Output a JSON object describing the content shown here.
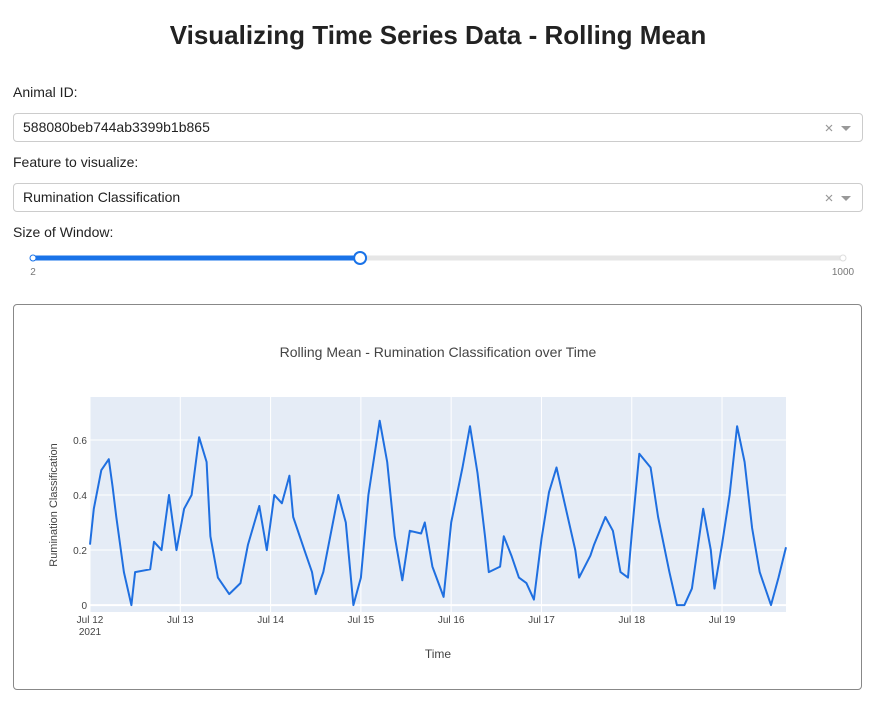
{
  "page": {
    "title": "Visualizing Time Series Data - Rolling Mean",
    "animal_label": "Animal ID:",
    "animal_value": "588080beb744ab3399b1b865",
    "feature_label": "Feature to visualize:",
    "feature_value": "Rumination Classification",
    "window_label": "Size of Window:",
    "slider": {
      "min": 2,
      "max": 1000,
      "value": 405
    }
  },
  "chart_data": {
    "type": "line",
    "title": "Rolling Mean - Rumination Classification over Time",
    "x_label": "Time",
    "y_label": "Rumination Classification",
    "color": "#1f6fe0",
    "grid": true,
    "x": [
      "2021-07-12 00:00",
      "2021-07-12 01:00",
      "2021-07-12 03:00",
      "2021-07-12 05:00",
      "2021-07-12 06:00",
      "2021-07-12 07:00",
      "2021-07-12 09:00",
      "2021-07-12 11:00",
      "2021-07-12 12:00",
      "2021-07-12 16:00",
      "2021-07-12 17:00",
      "2021-07-12 19:00",
      "2021-07-12 21:00",
      "2021-07-12 23:00",
      "2021-07-13 01:00",
      "2021-07-13 03:00",
      "2021-07-13 05:00",
      "2021-07-13 07:00",
      "2021-07-13 08:00",
      "2021-07-13 10:00",
      "2021-07-13 13:00",
      "2021-07-13 16:00",
      "2021-07-13 18:00",
      "2021-07-13 21:00",
      "2021-07-13 23:00",
      "2021-07-14 01:00",
      "2021-07-14 03:00",
      "2021-07-14 05:00",
      "2021-07-14 06:00",
      "2021-07-14 09:00",
      "2021-07-14 11:00",
      "2021-07-14 12:00",
      "2021-07-14 14:00",
      "2021-07-14 18:00",
      "2021-07-14 20:00",
      "2021-07-14 22:00",
      "2021-07-15 00:00",
      "2021-07-15 02:00",
      "2021-07-15 05:00",
      "2021-07-15 07:00",
      "2021-07-15 09:00",
      "2021-07-15 11:00",
      "2021-07-15 13:00",
      "2021-07-15 16:00",
      "2021-07-15 17:00",
      "2021-07-15 19:00",
      "2021-07-15 22:00",
      "2021-07-16 00:00",
      "2021-07-16 03:00",
      "2021-07-16 05:00",
      "2021-07-16 07:00",
      "2021-07-16 09:00",
      "2021-07-16 10:00",
      "2021-07-16 13:00",
      "2021-07-16 14:00",
      "2021-07-16 16:00",
      "2021-07-16 18:00",
      "2021-07-16 20:00",
      "2021-07-16 22:00",
      "2021-07-17 00:00",
      "2021-07-17 02:00",
      "2021-07-17 04:00",
      "2021-07-17 06:00",
      "2021-07-17 09:00",
      "2021-07-17 10:00",
      "2021-07-17 13:00",
      "2021-07-17 14:00",
      "2021-07-17 17:00",
      "2021-07-17 19:00",
      "2021-07-17 21:00",
      "2021-07-17 23:00",
      "2021-07-18 00:00",
      "2021-07-18 02:00",
      "2021-07-18 05:00",
      "2021-07-18 07:00",
      "2021-07-18 10:00",
      "2021-07-18 12:00",
      "2021-07-18 14:00",
      "2021-07-18 16:00",
      "2021-07-18 19:00",
      "2021-07-18 21:00",
      "2021-07-18 22:00",
      "2021-07-19 00:00",
      "2021-07-19 02:00",
      "2021-07-19 04:00",
      "2021-07-19 06:00",
      "2021-07-19 08:00",
      "2021-07-19 10:00",
      "2021-07-19 13:00",
      "2021-07-19 15:00",
      "2021-07-19 17:00"
    ],
    "values": [
      0.22,
      0.35,
      0.49,
      0.53,
      0.43,
      0.32,
      0.12,
      0.0,
      0.12,
      0.13,
      0.23,
      0.2,
      0.4,
      0.2,
      0.35,
      0.4,
      0.61,
      0.52,
      0.25,
      0.1,
      0.04,
      0.08,
      0.22,
      0.36,
      0.2,
      0.4,
      0.37,
      0.47,
      0.32,
      0.2,
      0.12,
      0.04,
      0.12,
      0.4,
      0.3,
      0.0,
      0.1,
      0.4,
      0.67,
      0.52,
      0.25,
      0.09,
      0.27,
      0.26,
      0.3,
      0.14,
      0.03,
      0.3,
      0.5,
      0.65,
      0.48,
      0.25,
      0.12,
      0.14,
      0.25,
      0.18,
      0.1,
      0.08,
      0.02,
      0.24,
      0.41,
      0.5,
      0.38,
      0.2,
      0.1,
      0.18,
      0.22,
      0.32,
      0.27,
      0.12,
      0.1,
      0.26,
      0.55,
      0.5,
      0.32,
      0.12,
      0.0,
      0.0,
      0.06,
      0.35,
      0.2,
      0.06,
      0.22,
      0.4,
      0.65,
      0.52,
      0.28,
      0.12,
      0.0,
      0.1,
      0.21
    ],
    "xlim": [
      "2021-07-12 00:00",
      "2021-07-19 17:00"
    ],
    "xticks": [
      {
        "value": "2021-07-12 00:00",
        "label": "Jul 12"
      },
      {
        "value": "2021-07-13 00:00",
        "label": "Jul 13"
      },
      {
        "value": "2021-07-14 00:00",
        "label": "Jul 14"
      },
      {
        "value": "2021-07-15 00:00",
        "label": "Jul 15"
      },
      {
        "value": "2021-07-16 00:00",
        "label": "Jul 16"
      },
      {
        "value": "2021-07-17 00:00",
        "label": "Jul 17"
      },
      {
        "value": "2021-07-18 00:00",
        "label": "Jul 18"
      },
      {
        "value": "2021-07-19 00:00",
        "label": "Jul 19"
      }
    ],
    "x_axis_year": "2021",
    "ylim": [
      -0.025,
      0.756
    ],
    "yticks": [
      0,
      0.2,
      0.4,
      0.6
    ]
  }
}
